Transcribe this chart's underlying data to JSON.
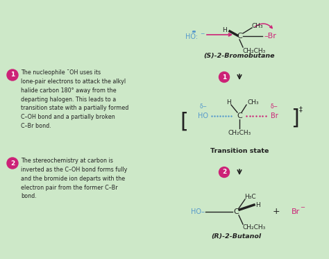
{
  "bg_color": "#cde8c8",
  "text_color": "#222222",
  "blue_color": "#5599cc",
  "pink_color": "#cc2277",
  "fig_width": 4.74,
  "fig_height": 3.73,
  "mol1_label": "(S)-2-Bromobutane",
  "ts_label": "Transition state",
  "mol2_label": "(R)-2-Butanol"
}
